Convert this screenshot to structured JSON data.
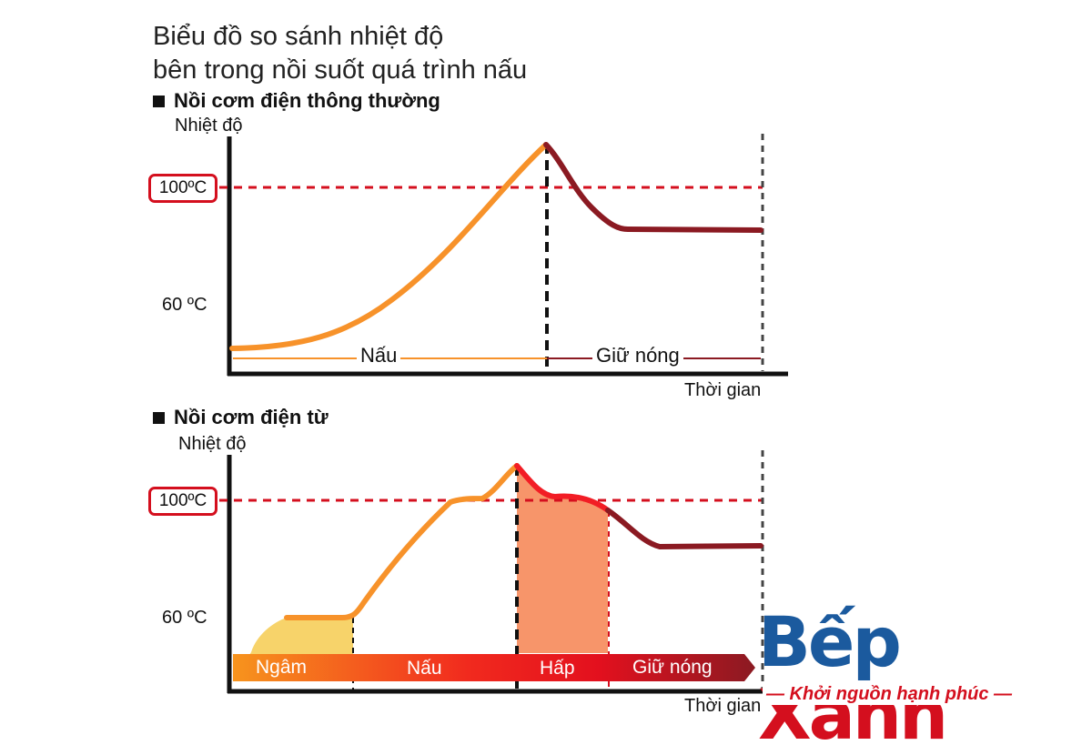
{
  "title_line1": "Biểu đồ so sánh nhiệt độ",
  "title_line2": "bên trong nồi suốt quá trình nấu",
  "brand": {
    "name_part1": "Bếp ",
    "name_part2": "Xanh",
    "tagline": "— Khởi nguồn hạnh phúc —",
    "colors": {
      "primary": "#1b5a9e",
      "accent": "#d40f1e"
    }
  },
  "chart_data": [
    {
      "type": "line",
      "title": "Nồi cơm điện thông thường",
      "ylabel": "Nhiệt độ",
      "xlabel": "Thời gian",
      "ytick_labels": [
        "100ºC",
        "60 ºC"
      ],
      "reference_line_label": "100ºC",
      "phases": [
        "Nấu",
        "Giữ nóng"
      ],
      "colors": {
        "cook": "#f7922a",
        "keep_warm": "#8b1a22",
        "reference": "#d40f1e"
      }
    },
    {
      "type": "line",
      "title": "Nồi cơm điện từ",
      "ylabel": "Nhiệt độ",
      "xlabel": "Thời gian",
      "ytick_labels": [
        "100ºC",
        "60 ºC"
      ],
      "reference_line_label": "100ºC",
      "phases": [
        "Ngâm",
        "Nấu",
        "Hấp",
        "Giữ nóng"
      ],
      "colors": {
        "soak": "#f7d36a",
        "cook": "#f7922a",
        "steam": "#f7956a",
        "keep_warm": "#8b1a22",
        "reference": "#d40f1e"
      }
    }
  ]
}
